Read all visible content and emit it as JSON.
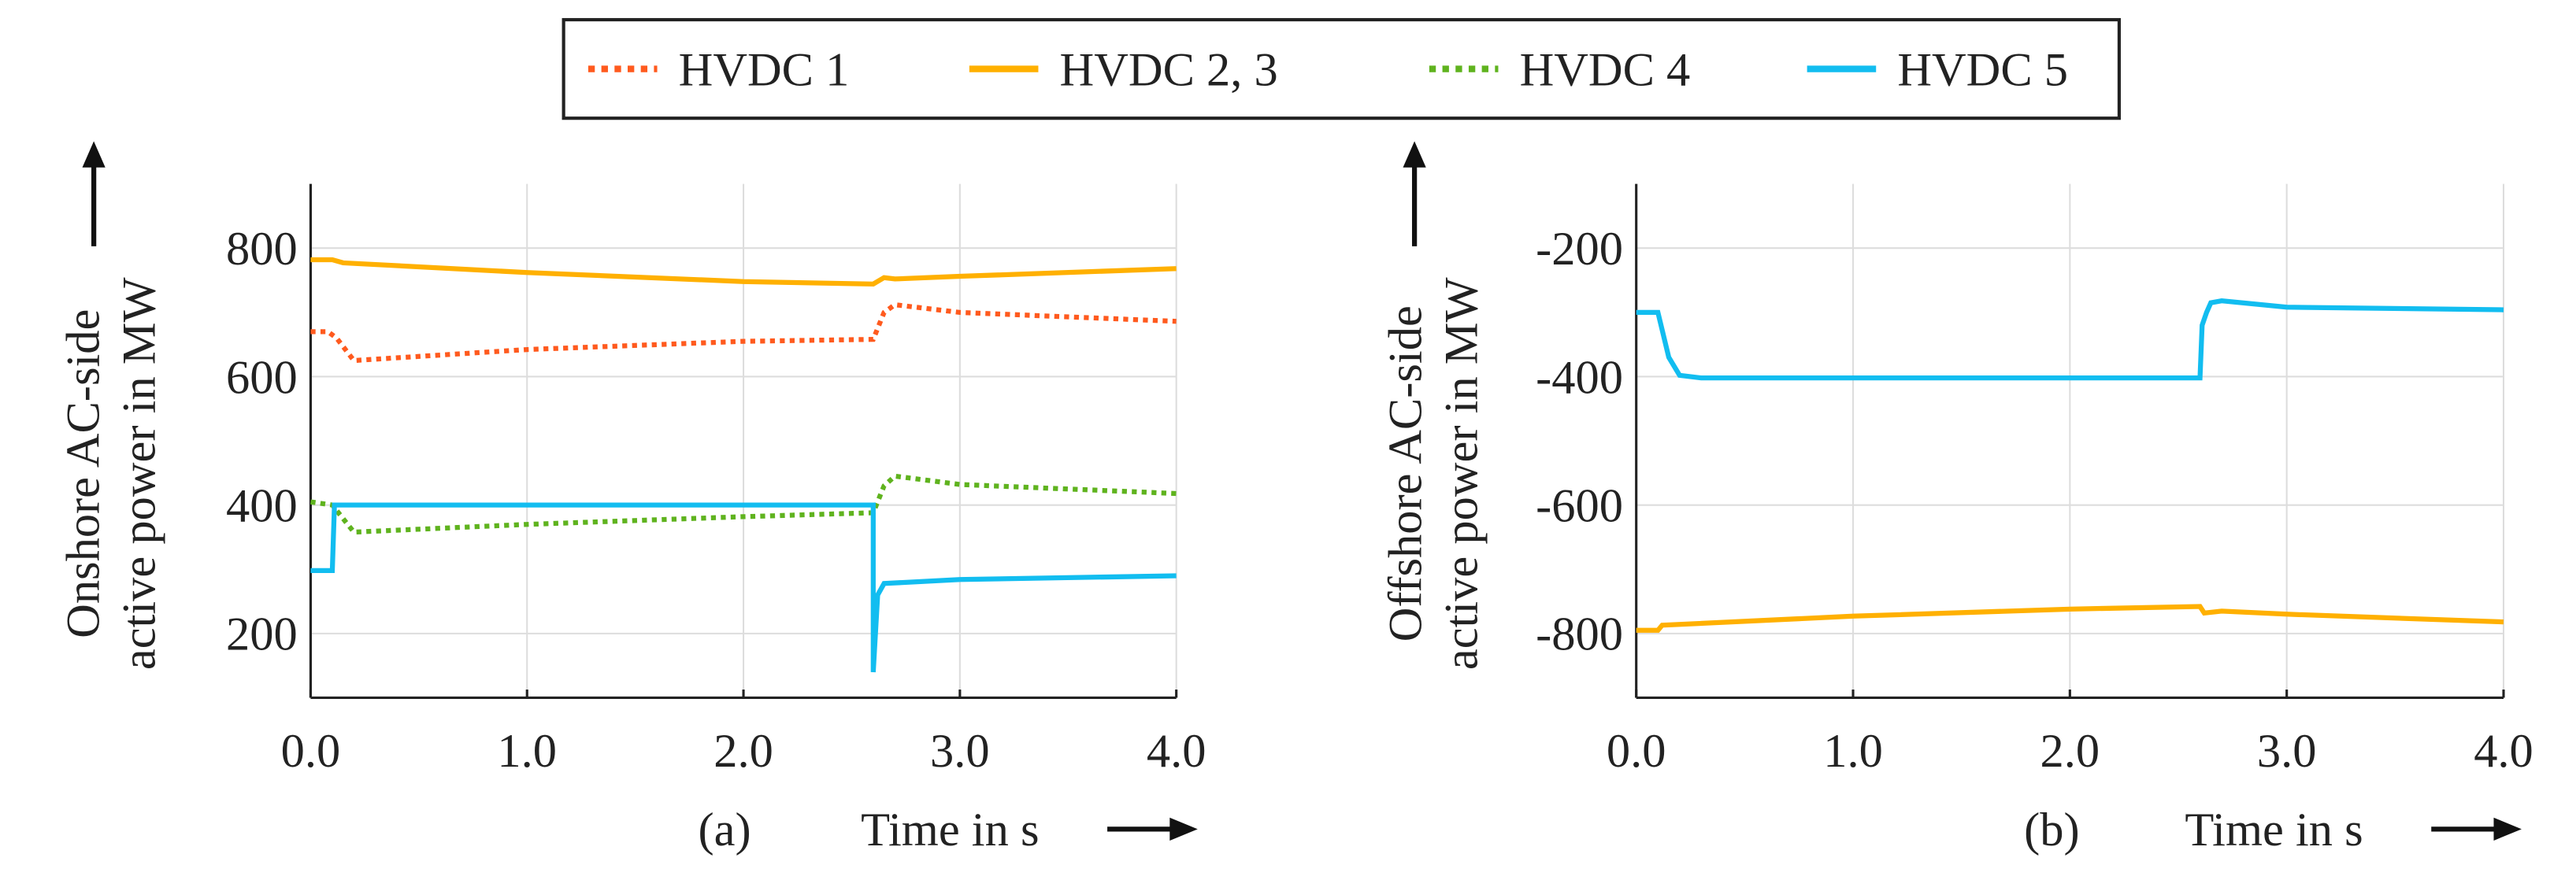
{
  "legend": [
    {
      "name": "HVDC 1",
      "color": "#ff5a1e",
      "style": "dotted"
    },
    {
      "name": "HVDC 2, 3",
      "color": "#ffb000",
      "style": "solid"
    },
    {
      "name": "HVDC 4",
      "color": "#5fb31e",
      "style": "dotted"
    },
    {
      "name": "HVDC 5",
      "color": "#12bdf0",
      "style": "solid"
    }
  ],
  "chart_data": [
    {
      "type": "line",
      "panel": "(a)",
      "xlabel": "Time in s",
      "ylabel": [
        "Onshore AC-side",
        "active power in MW"
      ],
      "xlim": [
        0,
        4
      ],
      "ylim": [
        100,
        900
      ],
      "xticks": [
        0,
        1,
        2,
        3,
        4
      ],
      "xtick_labels": [
        "0.0",
        "1.0",
        "2.0",
        "3.0",
        "4.0"
      ],
      "yticks": [
        200,
        400,
        600,
        800
      ],
      "ytick_labels": [
        "200",
        "400",
        "600",
        "800"
      ],
      "grid": true,
      "series": [
        {
          "name": "HVDC 2, 3",
          "x": [
            0,
            0.1,
            0.15,
            1,
            2,
            2.6,
            2.65,
            2.7,
            3,
            4
          ],
          "y": [
            782,
            782,
            777,
            762,
            748,
            744,
            754,
            752,
            756,
            768
          ]
        },
        {
          "name": "HVDC 1",
          "x": [
            0,
            0.08,
            0.12,
            0.2,
            1,
            2,
            2.6,
            2.65,
            2.7,
            3,
            4
          ],
          "y": [
            670,
            670,
            660,
            625,
            642,
            655,
            658,
            700,
            712,
            700,
            686
          ]
        },
        {
          "name": "HVDC 4",
          "x": [
            0,
            0.1,
            0.2,
            1,
            2,
            2.6,
            2.65,
            2.7,
            3,
            4
          ],
          "y": [
            405,
            400,
            358,
            370,
            382,
            388,
            430,
            445,
            432,
            418
          ]
        },
        {
          "name": "HVDC 5",
          "x": [
            0,
            0.1,
            0.11,
            2.6,
            2.6,
            2.62,
            2.65,
            3,
            4
          ],
          "y": [
            298,
            298,
            400,
            400,
            140,
            260,
            278,
            284,
            290
          ]
        }
      ]
    },
    {
      "type": "line",
      "panel": "(b)",
      "xlabel": "Time in s",
      "ylabel": [
        "Offshore AC-side",
        "active power in MW"
      ],
      "xlim": [
        0,
        4
      ],
      "ylim": [
        -900,
        -100
      ],
      "xticks": [
        0,
        1,
        2,
        3,
        4
      ],
      "xtick_labels": [
        "0.0",
        "1.0",
        "2.0",
        "3.0",
        "4.0"
      ],
      "yticks": [
        -800,
        -600,
        -400,
        -200
      ],
      "ytick_labels": [
        "-800",
        "-600",
        "-400",
        "-200"
      ],
      "grid": true,
      "series": [
        {
          "name": "HVDC 5",
          "x": [
            0,
            0.1,
            0.15,
            0.2,
            0.3,
            2.6,
            2.61,
            2.63,
            2.65,
            2.7,
            3,
            4
          ],
          "y": [
            -300,
            -300,
            -370,
            -398,
            -402,
            -402,
            -320,
            -300,
            -285,
            -282,
            -292,
            -296
          ]
        },
        {
          "name": "HVDC 2, 3",
          "x": [
            0,
            0.1,
            0.12,
            1,
            2,
            2.6,
            2.62,
            2.7,
            3,
            4
          ],
          "y": [
            -795,
            -795,
            -787,
            -773,
            -762,
            -758,
            -768,
            -765,
            -770,
            -782
          ]
        }
      ]
    }
  ]
}
